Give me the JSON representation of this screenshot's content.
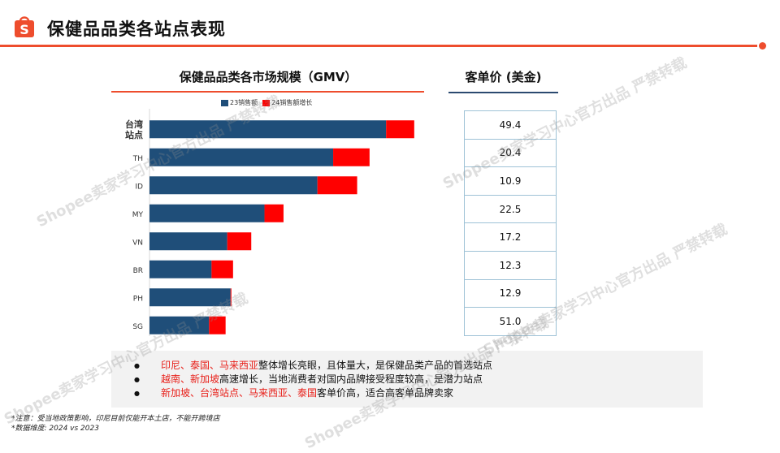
{
  "header": {
    "title": "保健品品类各站点表现",
    "logo_icon": "shopee-bag-icon",
    "accent_color": "#ee4d2d"
  },
  "chart": {
    "title": "保健品品类各市场规模（GMV）",
    "legend": [
      "23销售额",
      "24销售额增长"
    ]
  },
  "chart_data": {
    "type": "bar",
    "orientation": "horizontal",
    "stacked": true,
    "title": "保健品品类各市场规模（GMV）",
    "categories": [
      "台湾\n站点",
      "TH",
      "ID",
      "MY",
      "VN",
      "BR",
      "PH",
      "SG"
    ],
    "series": [
      {
        "name": "23销售额",
        "color": "#1f4e79",
        "values": [
          286,
          222,
          203,
          139,
          94,
          75,
          98,
          72
        ]
      },
      {
        "name": "24销售额增长",
        "color": "#ff0000",
        "values": [
          34,
          44,
          48,
          23,
          29,
          26,
          1,
          20
        ]
      }
    ],
    "xlim": [
      0,
      330
    ],
    "axis_labels_visible": false,
    "legend_position": "top"
  },
  "price_panel": {
    "title": "客单价 (美金)",
    "values": [
      "49.4",
      "20.4",
      "10.9",
      "22.5",
      "17.2",
      "12.3",
      "12.9",
      "51.0"
    ]
  },
  "summary": [
    {
      "highlight": "印尼、泰国、马来西亚",
      "text": "整体增长亮眼，且体量大，是保健品类产品的首选站点"
    },
    {
      "highlight": "越南、新加坡",
      "text": "高速增长，当地消费者对国内品牌接受程度较高，是潜力站点"
    },
    {
      "highlight": "新加坡、台湾站点、马来西亚、泰国",
      "text": "客单价高，适合高客单品牌卖家"
    }
  ],
  "notes": [
    "*注意：受当地政策影响，印尼目前仅能开本土店，不能开跨境店",
    "*数据维度: 2024 vs 2023"
  ],
  "watermark": "Shopee卖家学习中心官方出品 严禁转载"
}
